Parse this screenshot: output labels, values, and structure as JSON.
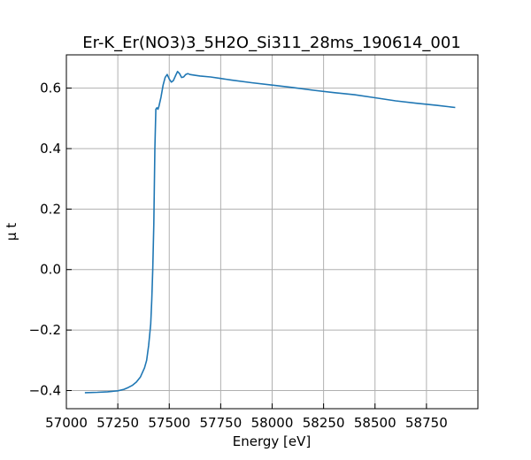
{
  "chart_data": {
    "type": "line",
    "title": "Er-K_Er(NO3)3_5H2O_Si311_28ms_190614_001",
    "xlabel": "Energy [eV]",
    "ylabel": "μ t",
    "xlim": [
      57000,
      59000
    ],
    "ylim": [
      -0.46,
      0.71
    ],
    "xticks": [
      57000,
      57250,
      57500,
      57750,
      58000,
      58250,
      58500,
      58750
    ],
    "xtick_labels": [
      "57000",
      "57250",
      "57500",
      "57750",
      "58000",
      "58250",
      "58500",
      "58750"
    ],
    "yticks": [
      -0.4,
      -0.2,
      0.0,
      0.2,
      0.4,
      0.6
    ],
    "ytick_labels": [
      "−0.4",
      "−0.2",
      "0.0",
      "0.2",
      "0.4",
      "0.6"
    ],
    "grid": true,
    "series": [
      {
        "color": "#1f77b4",
        "x": [
          57090,
          57150,
          57200,
          57250,
          57280,
          57300,
          57320,
          57340,
          57360,
          57380,
          57390,
          57400,
          57410,
          57415,
          57420,
          57425,
          57430,
          57435,
          57440,
          57445,
          57450,
          57460,
          57470,
          57480,
          57490,
          57500,
          57510,
          57520,
          57530,
          57540,
          57550,
          57560,
          57570,
          57580,
          57590,
          57600,
          57620,
          57650,
          57700,
          57750,
          57800,
          57900,
          58000,
          58100,
          58200,
          58300,
          58400,
          58500,
          58600,
          58700,
          58800,
          58890
        ],
        "y": [
          -0.407,
          -0.406,
          -0.404,
          -0.401,
          -0.396,
          -0.39,
          -0.383,
          -0.372,
          -0.355,
          -0.325,
          -0.3,
          -0.25,
          -0.18,
          -0.1,
          0.0,
          0.15,
          0.4,
          0.53,
          0.535,
          0.53,
          0.54,
          0.57,
          0.61,
          0.635,
          0.645,
          0.63,
          0.62,
          0.625,
          0.64,
          0.655,
          0.648,
          0.635,
          0.637,
          0.645,
          0.648,
          0.645,
          0.643,
          0.64,
          0.637,
          0.632,
          0.627,
          0.618,
          0.61,
          0.602,
          0.593,
          0.585,
          0.578,
          0.568,
          0.558,
          0.55,
          0.543,
          0.536
        ]
      }
    ]
  }
}
